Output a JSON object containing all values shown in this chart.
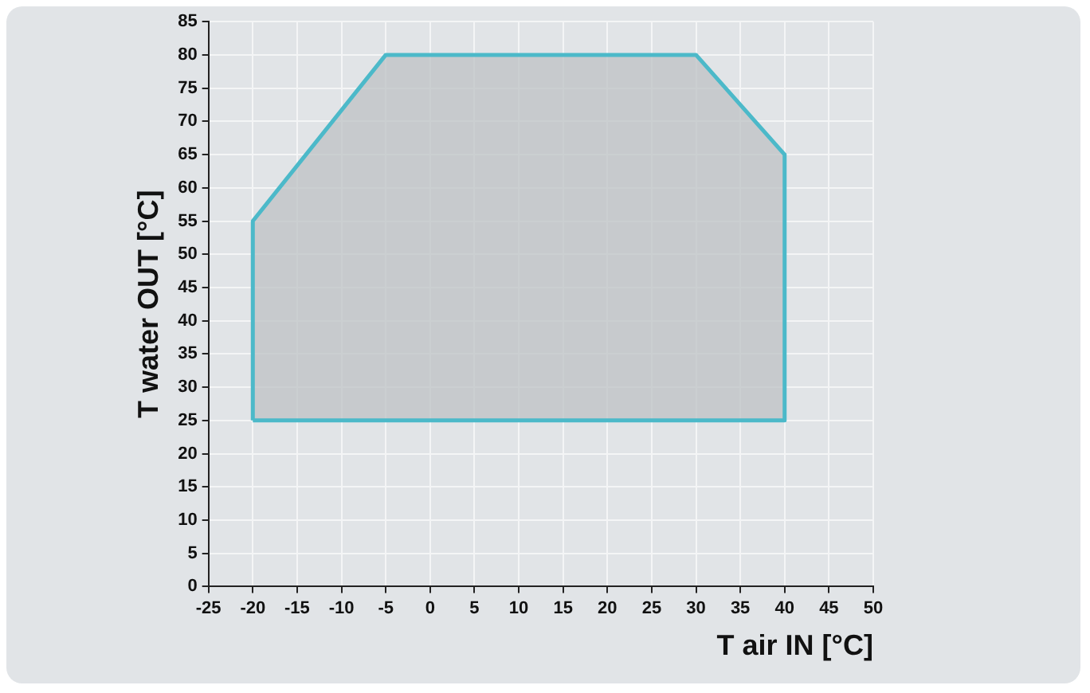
{
  "chart_data": {
    "type": "area",
    "xlabel": "T air IN [°C]",
    "ylabel": "T water OUT [°C]",
    "series": [
      {
        "color": "#4cb9c9",
        "x": [
          -20,
          -20,
          -5,
          30,
          40,
          40,
          -20
        ],
        "values": [
          25,
          55,
          80,
          80,
          65,
          25,
          25
        ]
      }
    ],
    "xlim": [
      -25,
      50
    ],
    "xticks": [
      -25,
      -20,
      -15,
      -10,
      -5,
      0,
      5,
      10,
      15,
      20,
      25,
      30,
      35,
      40,
      45,
      50
    ],
    "ylim": [
      0,
      85
    ],
    "yticks": [
      0,
      5,
      10,
      15,
      20,
      25,
      30,
      35,
      40,
      45,
      50,
      55,
      60,
      65,
      70,
      75,
      80,
      85
    ],
    "grid": true,
    "legend": false,
    "marker": "none",
    "line_style": "solid"
  }
}
